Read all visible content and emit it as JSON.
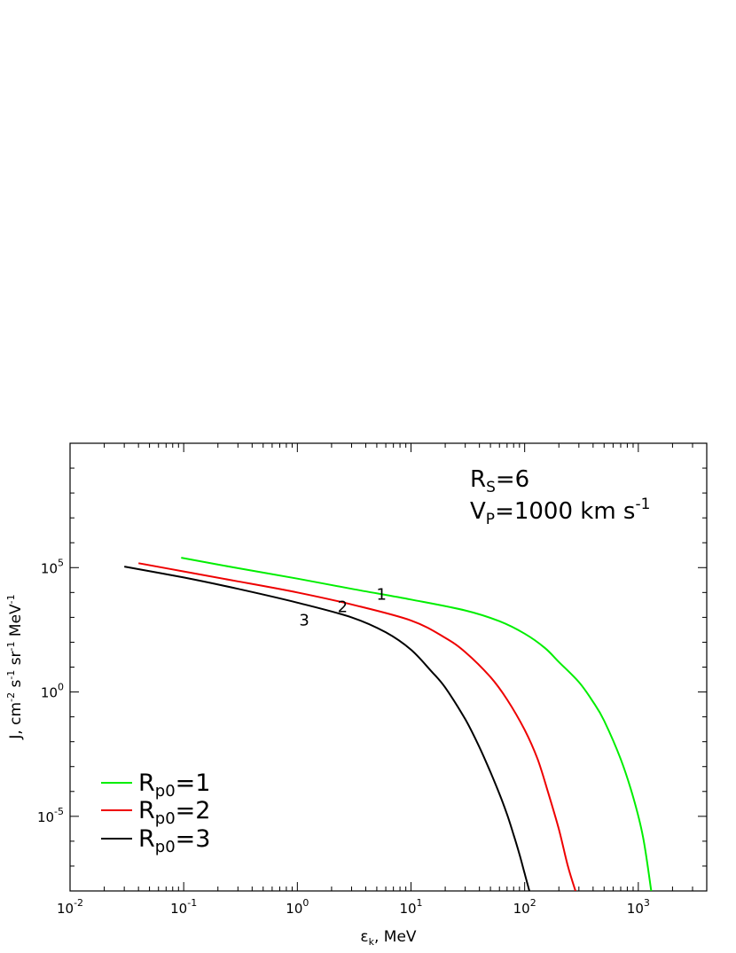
{
  "chart_data": {
    "type": "line",
    "x_scale": "log",
    "y_scale": "log",
    "xlim": [
      0.01,
      4000
    ],
    "ylim": [
      1e-08,
      10000000000.0
    ],
    "grid": false,
    "legend_position": "bottom-left",
    "xlabel": {
      "base": "ε",
      "sub": "k",
      "rest": ", MeV"
    },
    "ylabel": {
      "t1": "J, cm",
      "s1": "-2",
      "t2": " s",
      "s2": "-1",
      "t3": " sr",
      "s3": "-1",
      "t4": " MeV",
      "s4": "-1"
    },
    "x_ticks": [
      {
        "value": 0.01,
        "base": "10",
        "exp": "-2"
      },
      {
        "value": 0.1,
        "base": "10",
        "exp": "-1"
      },
      {
        "value": 1,
        "base": "10",
        "exp": "0"
      },
      {
        "value": 10,
        "base": "10",
        "exp": "1"
      },
      {
        "value": 100,
        "base": "10",
        "exp": "2"
      },
      {
        "value": 1000,
        "base": "10",
        "exp": "3"
      }
    ],
    "y_ticks": [
      {
        "value": 100000.0,
        "base": "10",
        "exp": "5"
      },
      {
        "value": 1,
        "base": "10",
        "exp": "0"
      },
      {
        "value": 1e-05,
        "base": "10",
        "exp": "-5"
      }
    ],
    "annotations": {
      "rs": {
        "base": "R",
        "sub": "S",
        "rest": "=6"
      },
      "vp": {
        "base": "V",
        "sub": "P",
        "rest": "=1000 km s",
        "sup": "-1"
      }
    },
    "series": [
      {
        "name": {
          "base": "R",
          "sub": "p0",
          "rest": "=1"
        },
        "color": "#00ee00",
        "curve_label": "1",
        "label_at": {
          "x": 5.5,
          "y": 5200
        },
        "x": [
          0.095,
          0.3,
          1,
          3,
          10,
          30,
          60,
          100,
          150,
          200,
          300,
          400,
          500,
          700,
          900,
          1100,
          1300
        ],
        "y": [
          250000,
          95000,
          36000,
          14000,
          5200,
          1900,
          700,
          220,
          60,
          16,
          2.5,
          0.4,
          0.07,
          0.002,
          6e-05,
          1.5e-06,
          1e-08
        ]
      },
      {
        "name": {
          "base": "R",
          "sub": "p0",
          "rest": "=2"
        },
        "color": "#ee0000",
        "curve_label": "2",
        "label_at": {
          "x": 2.5,
          "y": 1600
        },
        "x": [
          0.04,
          0.1,
          0.3,
          1,
          3,
          10,
          20,
          30,
          50,
          70,
          100,
          130,
          160,
          200,
          240,
          280
        ],
        "y": [
          150000,
          70000,
          28000,
          10000,
          3300,
          750,
          150,
          40,
          4,
          0.5,
          0.03,
          0.002,
          0.0001,
          3e-06,
          1e-07,
          1e-08
        ]
      },
      {
        "name": {
          "base": "R",
          "sub": "p0",
          "rest": "=3"
        },
        "color": "#000000",
        "curve_label": "3",
        "label_at": {
          "x": 1.15,
          "y": 480
        },
        "x": [
          0.03,
          0.1,
          0.3,
          1,
          3,
          6,
          10,
          15,
          20,
          30,
          40,
          50,
          60,
          70,
          80,
          90,
          100,
          110
        ],
        "y": [
          110000,
          40000,
          14000,
          3900,
          1000,
          250,
          50,
          7,
          1.5,
          0.08,
          0.006,
          0.0006,
          8e-05,
          1.2e-05,
          1.8e-06,
          3e-07,
          5e-08,
          1e-08
        ]
      }
    ]
  }
}
